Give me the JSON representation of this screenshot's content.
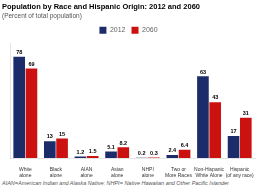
{
  "chart_data": {
    "type": "bar",
    "title": "Population by Race and Hispanic Origin: 2012 and 2060",
    "subtitle": "(Percent of total population)",
    "footnote": "AIAN=American Indian and Alaska Native; NHPI= Native Hawaiian and Other Pacific Islander",
    "categories": [
      "White\nalone",
      "Black\nalone",
      "AIAN\nalone",
      "Asian\nalone",
      "NHPI\nalone",
      "Two or\nMore Races",
      "Non-Hispanic\nWhite Alone",
      "Hispanic\n(of any race)"
    ],
    "series": [
      {
        "name": "2012",
        "color": "#1c2c6b",
        "values": [
          78,
          13,
          1.2,
          5.1,
          0.2,
          2.4,
          63,
          17
        ]
      },
      {
        "name": "2060",
        "color": "#cc1111",
        "values": [
          69,
          15,
          1.5,
          8.2,
          0.3,
          6.4,
          43,
          31
        ]
      }
    ],
    "ylim": [
      0,
      88
    ],
    "data_labels": true,
    "tick_labels": "x",
    "grid": false,
    "legend": "top"
  }
}
